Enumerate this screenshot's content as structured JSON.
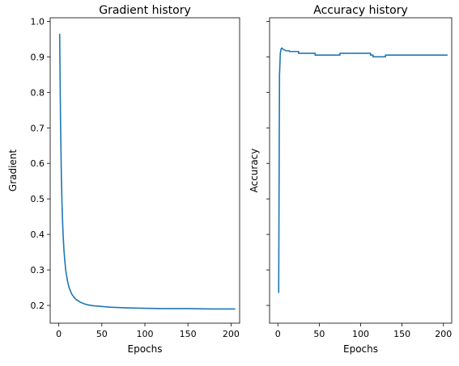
{
  "chart_data": [
    {
      "type": "line",
      "title": "Gradient history",
      "xlabel": "Epochs",
      "ylabel": "Gradient",
      "xlim": [
        -10,
        210
      ],
      "ylim": [
        0.15,
        1.01
      ],
      "xticks": [
        0,
        50,
        100,
        150,
        200
      ],
      "yticks": [
        0.2,
        0.3,
        0.4,
        0.5,
        0.6,
        0.7,
        0.8,
        0.9,
        1.0
      ],
      "ytick_labels": [
        "0.2",
        "0.3",
        "0.4",
        "0.5",
        "0.6",
        "0.7",
        "0.8",
        "0.9",
        "1.0"
      ],
      "show_ytick_labels": true,
      "grid": false,
      "color": "#1f77b4",
      "series": [
        {
          "x": [
            1,
            2,
            3,
            4,
            5,
            6,
            7,
            8,
            10,
            12,
            15,
            18,
            20,
            25,
            30,
            35,
            40,
            50,
            60,
            70,
            80,
            100,
            120,
            150,
            180,
            200,
            205
          ],
          "y": [
            0.965,
            0.72,
            0.56,
            0.46,
            0.4,
            0.355,
            0.325,
            0.3,
            0.27,
            0.25,
            0.232,
            0.222,
            0.217,
            0.209,
            0.204,
            0.201,
            0.199,
            0.197,
            0.195,
            0.194,
            0.193,
            0.192,
            0.191,
            0.191,
            0.19,
            0.19,
            0.19
          ]
        }
      ]
    },
    {
      "type": "line",
      "title": "Accuracy history",
      "xlabel": "Epochs",
      "ylabel": "Accuracy",
      "xlim": [
        -10,
        210
      ],
      "ylim": [
        0.15,
        1.01
      ],
      "xticks": [
        0,
        50,
        100,
        150,
        200
      ],
      "yticks": [
        0.2,
        0.3,
        0.4,
        0.5,
        0.6,
        0.7,
        0.8,
        0.9,
        1.0
      ],
      "ytick_labels": [],
      "show_ytick_labels": false,
      "grid": false,
      "color": "#1f77b4",
      "series": [
        {
          "x": [
            1,
            2,
            3,
            4,
            5,
            6,
            7,
            8,
            9,
            10,
            14,
            14,
            25,
            25,
            45,
            45,
            75,
            75,
            112,
            112,
            115,
            115,
            130,
            130,
            205
          ],
          "y": [
            0.235,
            0.85,
            0.91,
            0.923,
            0.925,
            0.922,
            0.92,
            0.92,
            0.918,
            0.917,
            0.917,
            0.915,
            0.915,
            0.91,
            0.91,
            0.905,
            0.905,
            0.91,
            0.91,
            0.905,
            0.905,
            0.9,
            0.9,
            0.905,
            0.905
          ]
        }
      ]
    }
  ]
}
